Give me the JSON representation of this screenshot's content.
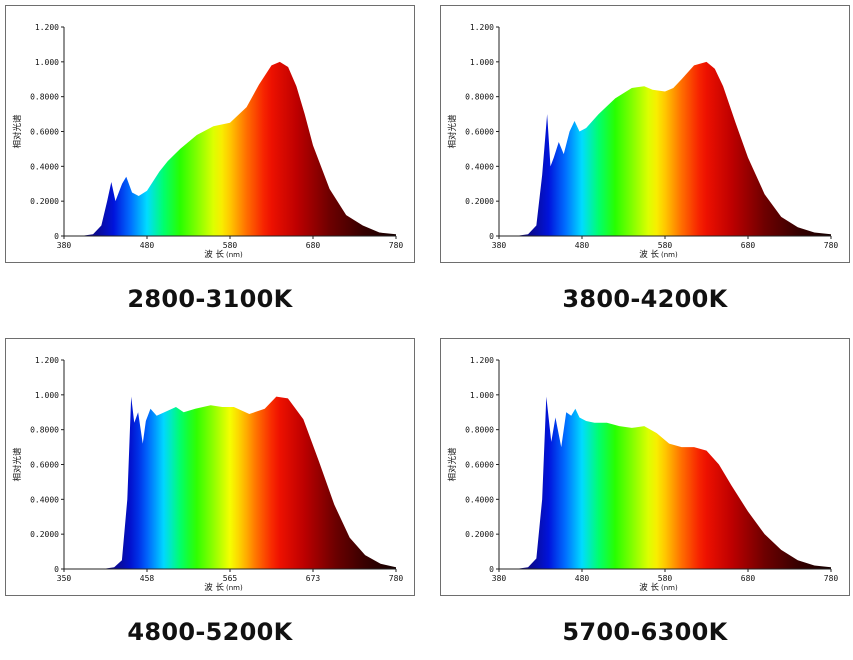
{
  "chart_data": [
    {
      "type": "area",
      "caption": "2800-3100K",
      "ylabel": "相对光谱",
      "xlabel": "波 长",
      "xunit": "(nm)",
      "xticks": [
        "380",
        "480",
        "580",
        "680",
        "780"
      ],
      "xlim": [
        380,
        780
      ],
      "yticks": [
        "0",
        "0.2000",
        "0.4000",
        "0.6000",
        "0.8000",
        "1.000",
        "1.200"
      ],
      "ylim": [
        0,
        1.2
      ],
      "x": [
        380,
        400,
        415,
        425,
        432,
        437,
        442,
        450,
        455,
        462,
        470,
        480,
        495,
        505,
        520,
        540,
        560,
        580,
        600,
        615,
        630,
        640,
        650,
        660,
        670,
        680,
        700,
        720,
        740,
        760,
        780
      ],
      "y": [
        0,
        0,
        0.01,
        0.06,
        0.2,
        0.31,
        0.2,
        0.3,
        0.34,
        0.25,
        0.23,
        0.26,
        0.37,
        0.43,
        0.5,
        0.58,
        0.63,
        0.65,
        0.74,
        0.87,
        0.98,
        1.0,
        0.97,
        0.86,
        0.7,
        0.52,
        0.27,
        0.12,
        0.06,
        0.02,
        0.01
      ]
    },
    {
      "type": "area",
      "caption": "3800-4200K",
      "ylabel": "相对光谱",
      "xlabel": "波 长",
      "xunit": "(nm)",
      "xticks": [
        "380",
        "480",
        "580",
        "680",
        "780"
      ],
      "xlim": [
        380,
        780
      ],
      "yticks": [
        "0",
        "0.2000",
        "0.4000",
        "0.6000",
        "0.8000",
        "1.000",
        "1.200"
      ],
      "ylim": [
        0,
        1.2
      ],
      "x": [
        380,
        400,
        415,
        425,
        432,
        438,
        442,
        446,
        452,
        458,
        465,
        471,
        477,
        485,
        500,
        520,
        540,
        555,
        565,
        580,
        590,
        600,
        615,
        630,
        640,
        650,
        665,
        680,
        700,
        720,
        740,
        760,
        780
      ],
      "y": [
        0,
        0,
        0.01,
        0.06,
        0.35,
        0.7,
        0.4,
        0.45,
        0.54,
        0.47,
        0.6,
        0.66,
        0.6,
        0.62,
        0.7,
        0.79,
        0.85,
        0.86,
        0.84,
        0.83,
        0.85,
        0.9,
        0.98,
        1.0,
        0.96,
        0.86,
        0.65,
        0.45,
        0.24,
        0.11,
        0.05,
        0.02,
        0.01
      ]
    },
    {
      "type": "area",
      "caption": "4800-5200K",
      "ylabel": "相对光谱",
      "xlabel": "波 长",
      "xunit": "(nm)",
      "xticks": [
        "350",
        "458",
        "565",
        "673",
        "780"
      ],
      "xlim": [
        350,
        780
      ],
      "yticks": [
        "0",
        "0.2000",
        "0.4000",
        "0.6000",
        "0.8000",
        "1.000",
        "1.200"
      ],
      "ylim": [
        0,
        1.2
      ],
      "x": [
        350,
        400,
        415,
        425,
        432,
        437,
        441,
        446,
        452,
        456,
        462,
        470,
        480,
        495,
        505,
        520,
        540,
        555,
        570,
        590,
        610,
        625,
        640,
        660,
        680,
        700,
        720,
        740,
        760,
        780
      ],
      "y": [
        0,
        0,
        0.01,
        0.05,
        0.4,
        0.99,
        0.84,
        0.9,
        0.72,
        0.85,
        0.92,
        0.88,
        0.9,
        0.93,
        0.9,
        0.92,
        0.94,
        0.93,
        0.93,
        0.89,
        0.92,
        0.99,
        0.98,
        0.86,
        0.62,
        0.37,
        0.18,
        0.08,
        0.03,
        0.01
      ]
    },
    {
      "type": "area",
      "caption": "5700-6300K",
      "ylabel": "相对光谱",
      "xlabel": "波 长",
      "xunit": "(nm)",
      "xticks": [
        "380",
        "480",
        "580",
        "680",
        "780"
      ],
      "xlim": [
        380,
        780
      ],
      "yticks": [
        "0",
        "0.2000",
        "0.4000",
        "0.6000",
        "0.8000",
        "1.000",
        "1.200"
      ],
      "ylim": [
        0,
        1.2
      ],
      "x": [
        380,
        400,
        415,
        425,
        432,
        437,
        443,
        448,
        455,
        461,
        467,
        472,
        477,
        485,
        495,
        510,
        525,
        540,
        555,
        570,
        585,
        600,
        615,
        630,
        645,
        660,
        680,
        700,
        720,
        740,
        760,
        780
      ],
      "y": [
        0,
        0,
        0.01,
        0.06,
        0.4,
        0.99,
        0.73,
        0.87,
        0.7,
        0.9,
        0.88,
        0.92,
        0.87,
        0.85,
        0.84,
        0.84,
        0.82,
        0.81,
        0.82,
        0.78,
        0.72,
        0.7,
        0.7,
        0.68,
        0.6,
        0.48,
        0.33,
        0.2,
        0.11,
        0.05,
        0.02,
        0.01
      ]
    }
  ]
}
